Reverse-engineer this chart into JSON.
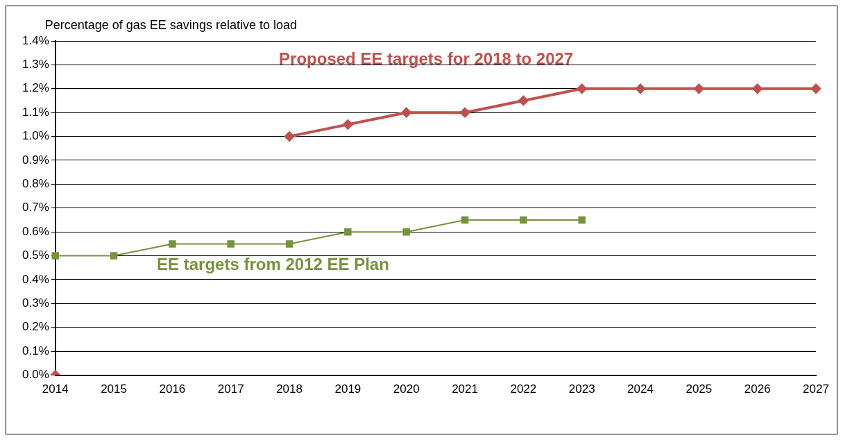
{
  "chart_data": {
    "type": "line",
    "ylabel": "Percentage of gas EE savings relative to load",
    "categories": [
      "2014",
      "2015",
      "2016",
      "2017",
      "2018",
      "2019",
      "2020",
      "2021",
      "2022",
      "2023",
      "2024",
      "2025",
      "2026",
      "2027"
    ],
    "series": [
      {
        "name": "Proposed EE targets for 2018 to 2027",
        "color": "#c0504d",
        "marker": "diamond",
        "values": [
          0,
          null,
          null,
          null,
          1.0,
          1.05,
          1.1,
          1.1,
          1.15,
          1.2,
          1.2,
          1.2,
          1.2,
          1.2
        ]
      },
      {
        "name": "EE targets from 2012 EE Plan",
        "color": "#77933c",
        "marker": "square",
        "values": [
          0.5,
          0.5,
          0.55,
          0.55,
          0.55,
          0.6,
          0.6,
          0.65,
          0.65,
          0.65,
          null,
          null,
          null,
          null
        ]
      }
    ],
    "ylim": [
      0,
      1.4
    ],
    "yticks": [
      {
        "value": 0,
        "label": "0.0%"
      },
      {
        "value": 0.1,
        "label": "0.1%"
      },
      {
        "value": 0.2,
        "label": "0.2%"
      },
      {
        "value": 0.3,
        "label": "0.3%"
      },
      {
        "value": 0.4,
        "label": "0.4%"
      },
      {
        "value": 0.5,
        "label": "0.5%"
      },
      {
        "value": 0.6,
        "label": "0.6%"
      },
      {
        "value": 0.7,
        "label": "0.7%"
      },
      {
        "value": 0.8,
        "label": "0.8%"
      },
      {
        "value": 0.9,
        "label": "0.9%"
      },
      {
        "value": 1.0,
        "label": "1.0%"
      },
      {
        "value": 1.1,
        "label": "1.1%"
      },
      {
        "value": 1.2,
        "label": "1.2%"
      },
      {
        "value": 1.3,
        "label": "1.3%"
      },
      {
        "value": 1.4,
        "label": "1.4%"
      }
    ],
    "grid": "y",
    "legend": false
  }
}
